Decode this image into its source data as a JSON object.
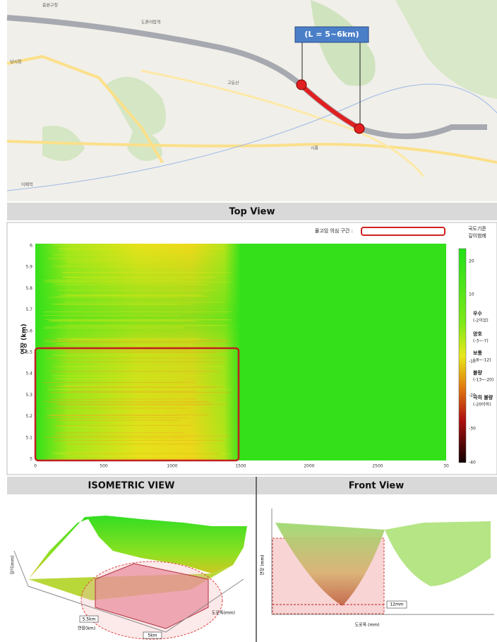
{
  "map": {
    "callout": "(L = 5~6km)",
    "places": [
      "중원구청",
      "도촌야탑역",
      "남시청",
      "고등산",
      "시흥",
      "이매역"
    ]
  },
  "top_view": {
    "title": "Top View",
    "legend_label": "물고임 의심 구간 :",
    "y_label": "연장 (km)",
    "y_ticks": [
      "6",
      "5.9",
      "5.8",
      "5.7",
      "5.6",
      "5.5",
      "5.4",
      "5.3",
      "5.2",
      "5.1",
      "5"
    ],
    "x_ticks": [
      "0",
      "500",
      "1000",
      "1500",
      "2000",
      "2500",
      "30"
    ],
    "colorbar": {
      "title": [
        "국도기준",
        "깊이범례"
      ],
      "ticks": [
        "20",
        "10",
        "-10",
        "-20",
        "-30",
        "-40"
      ],
      "classes": [
        {
          "name": "우수",
          "range": "(-2이상)"
        },
        {
          "name": "양호",
          "range": "(-3~-7)"
        },
        {
          "name": "보통",
          "range": "(-8~-12)"
        },
        {
          "name": "불량",
          "range": "(-13~-20)"
        },
        {
          "name": "극히 불량",
          "range": "(-20이하)"
        }
      ]
    }
  },
  "isometric_view": {
    "title": "ISOMETRIC VIEW",
    "label_a": "5.5km",
    "label_b": "5km",
    "x_label": "연장(km)",
    "y_label": "도로폭(mm)",
    "z_label": "깊이(mm)"
  },
  "front_view": {
    "title": "Front View",
    "depth_label": "12mm",
    "x_label": "도로폭 (mm)",
    "y_label": "연장 (mm)"
  }
}
